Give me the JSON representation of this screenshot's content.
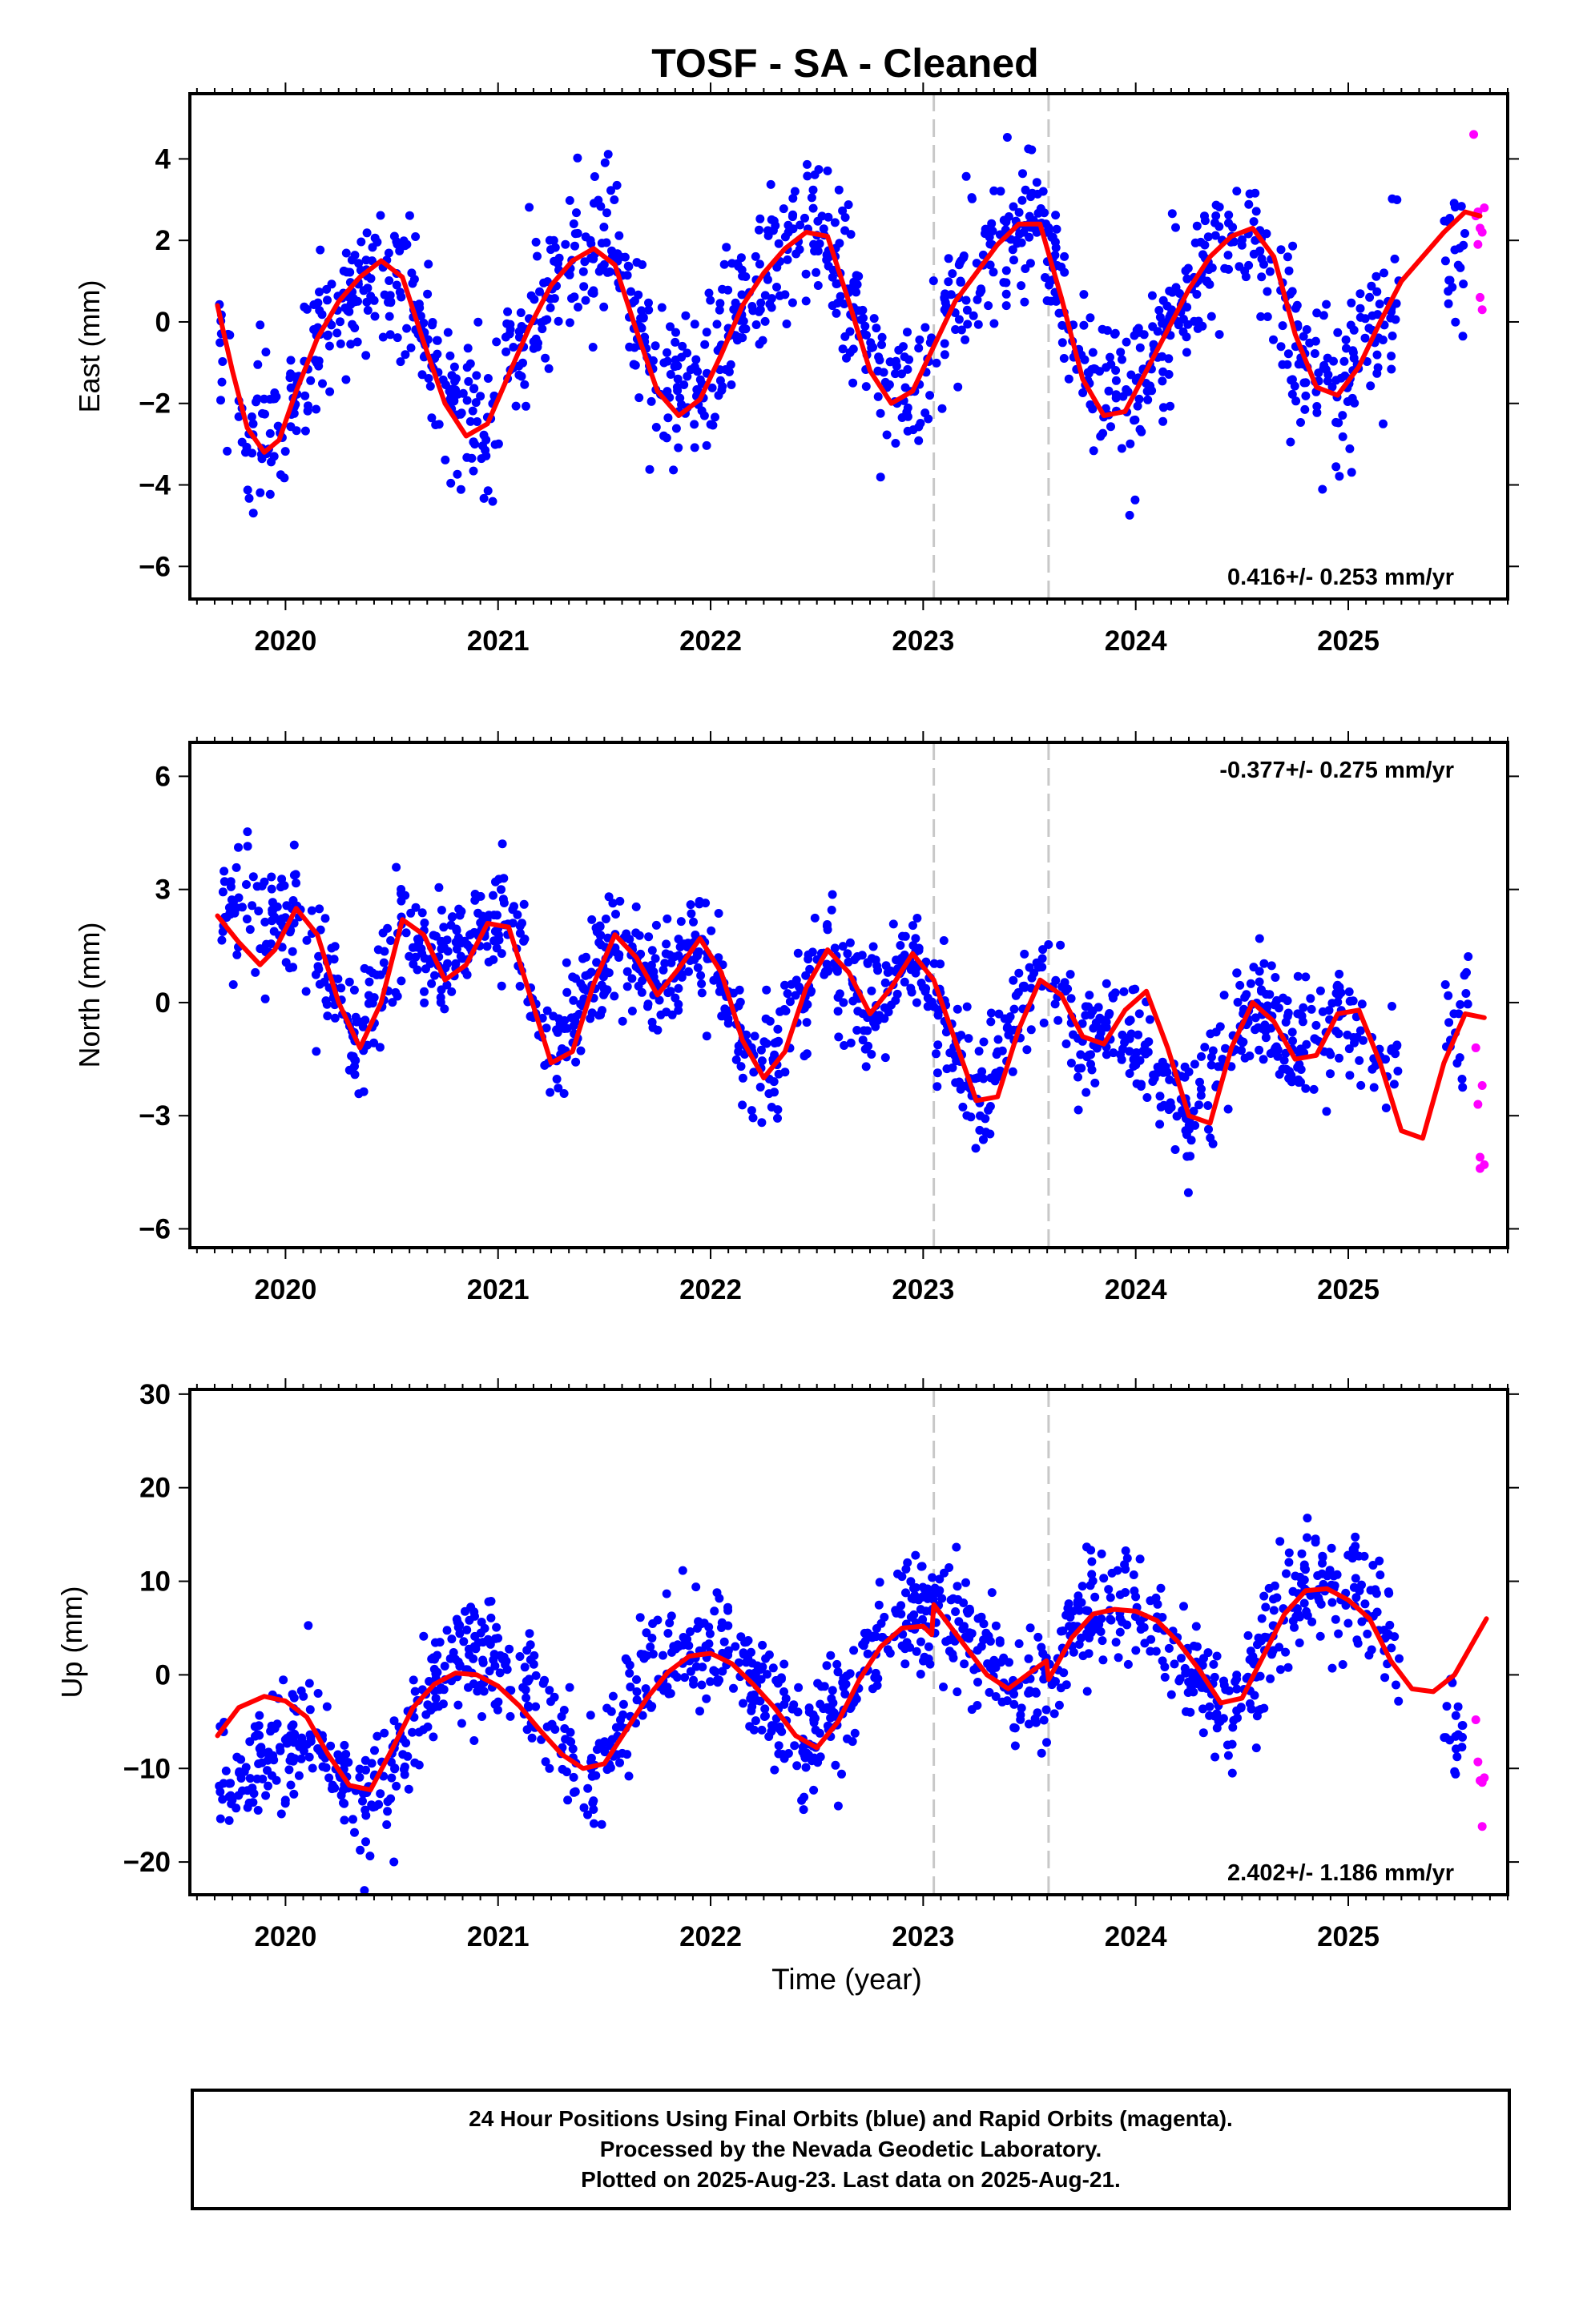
{
  "title": "TOSF  - SA - Cleaned",
  "xlabel": "Time (year)",
  "colors": {
    "final_orbits": "#0000ff",
    "rapid_orbits": "#ff00ff",
    "model_fit": "#ff0000",
    "event_lines": "#c8c8c8"
  },
  "footer": {
    "line1": "24 Hour Positions Using Final Orbits (blue) and Rapid Orbits (magenta).",
    "line2": "Processed by the Nevada Geodetic Laboratory.",
    "line3": "Plotted on 2025-Aug-23. Last data on 2025-Aug-21."
  },
  "chart_data": [
    {
      "type": "scatter",
      "component": "East",
      "ylabel": "East (mm)",
      "rate_text": "0.416+/- 0.253 mm/yr",
      "rate_position": "bottom-right",
      "xlim": [
        2019.55,
        2025.75
      ],
      "ylim": [
        -6.8,
        5.6
      ],
      "yticks": [
        -6,
        -4,
        -2,
        0,
        2,
        4
      ],
      "xticks": [
        2020,
        2021,
        2022,
        2023,
        2024,
        2025
      ],
      "event_lines_x": [
        2023.05,
        2023.59
      ],
      "fit_curve": {
        "x": [
          2019.68,
          2019.75,
          2019.82,
          2019.9,
          2019.97,
          2020.05,
          2020.15,
          2020.25,
          2020.35,
          2020.45,
          2020.55,
          2020.65,
          2020.75,
          2020.85,
          2020.95,
          2021.05,
          2021.15,
          2021.25,
          2021.35,
          2021.45,
          2021.55,
          2021.65,
          2021.75,
          2021.85,
          2021.95,
          2022.05,
          2022.15,
          2022.25,
          2022.35,
          2022.45,
          2022.55,
          2022.65,
          2022.75,
          2022.85,
          2022.95,
          2023.05,
          2023.15,
          2023.25,
          2023.35,
          2023.45,
          2023.55,
          2023.65,
          2023.75,
          2023.85,
          2023.95,
          2024.05,
          2024.15,
          2024.25,
          2024.35,
          2024.45,
          2024.55,
          2024.65,
          2024.75,
          2024.85,
          2024.95,
          2025.05,
          2025.15,
          2025.25,
          2025.35,
          2025.45,
          2025.55,
          2025.62
        ],
        "y": [
          0.4,
          -1.2,
          -2.6,
          -3.2,
          -2.9,
          -1.7,
          -0.4,
          0.5,
          1.1,
          1.5,
          1.1,
          -0.5,
          -2.0,
          -2.8,
          -2.5,
          -1.3,
          -0.1,
          0.9,
          1.5,
          1.8,
          1.4,
          -0.2,
          -1.7,
          -2.3,
          -1.9,
          -0.8,
          0.4,
          1.2,
          1.8,
          2.2,
          2.1,
          0.5,
          -1.2,
          -2.0,
          -1.7,
          -0.6,
          0.5,
          1.2,
          1.9,
          2.4,
          2.4,
          0.6,
          -1.4,
          -2.3,
          -2.2,
          -1.2,
          -0.2,
          0.8,
          1.6,
          2.1,
          2.3,
          1.6,
          -0.3,
          -1.6,
          -1.8,
          -1.1,
          0.0,
          1.0,
          1.6,
          2.2,
          2.7,
          2.6
        ]
      },
      "final_points": {
        "anchors_x": [
          2019.68,
          2019.82,
          2019.97,
          2020.15,
          2020.35,
          2020.55,
          2020.75,
          2020.95,
          2021.15,
          2021.35,
          2021.55,
          2021.75,
          2021.95,
          2022.15,
          2022.35,
          2022.55,
          2022.75,
          2022.95,
          2023.15,
          2023.35,
          2023.55,
          2023.75,
          2023.95,
          2024.15,
          2024.35,
          2024.55,
          2024.75,
          2024.95,
          2025.15,
          2025.45,
          2025.55
        ],
        "anchors_y": [
          0.2,
          -2.5,
          -2.8,
          -0.5,
          1.0,
          1.3,
          -2.0,
          -2.4,
          0.0,
          1.6,
          1.6,
          -1.5,
          -1.8,
          0.5,
          1.9,
          2.2,
          -1.0,
          -1.8,
          0.6,
          1.9,
          2.5,
          -1.2,
          -2.0,
          0.0,
          1.6,
          2.3,
          -0.5,
          -1.8,
          0.0,
          1.5,
          2.2
        ],
        "spread": 1.2,
        "count": 1300
      },
      "rapid_points": {
        "x": [
          2025.59,
          2025.6,
          2025.61,
          2025.61,
          2025.62,
          2025.62,
          2025.63,
          2025.63,
          2025.64
        ],
        "y": [
          4.6,
          2.6,
          2.7,
          1.9,
          2.3,
          0.6,
          0.3,
          2.2,
          2.8
        ]
      }
    },
    {
      "type": "scatter",
      "component": "North",
      "ylabel": "North (mm)",
      "rate_text": "-0.377+/- 0.275 mm/yr",
      "rate_position": "top-right",
      "xlim": [
        2019.55,
        2025.75
      ],
      "ylim": [
        -6.5,
        6.9
      ],
      "yticks": [
        -6,
        -3,
        0,
        3,
        6
      ],
      "xticks": [
        2020,
        2021,
        2022,
        2023,
        2024,
        2025
      ],
      "event_lines_x": [
        2023.05,
        2023.59
      ],
      "fit_curve": {
        "x": [
          2019.68,
          2019.78,
          2019.88,
          2019.95,
          2020.05,
          2020.15,
          2020.25,
          2020.35,
          2020.45,
          2020.55,
          2020.65,
          2020.75,
          2020.85,
          2020.95,
          2021.05,
          2021.15,
          2021.25,
          2021.35,
          2021.45,
          2021.55,
          2021.65,
          2021.75,
          2021.85,
          2021.95,
          2022.05,
          2022.15,
          2022.25,
          2022.35,
          2022.45,
          2022.55,
          2022.65,
          2022.75,
          2022.85,
          2022.95,
          2023.05,
          2023.15,
          2023.25,
          2023.35,
          2023.45,
          2023.55,
          2023.65,
          2023.75,
          2023.85,
          2023.95,
          2024.05,
          2024.15,
          2024.25,
          2024.35,
          2024.45,
          2024.55,
          2024.65,
          2024.75,
          2024.85,
          2024.95,
          2025.05,
          2025.15,
          2025.25,
          2025.35,
          2025.45,
          2025.55,
          2025.64
        ],
        "y": [
          2.3,
          1.6,
          1.0,
          1.4,
          2.5,
          1.8,
          0.0,
          -1.2,
          0.0,
          2.2,
          1.8,
          0.6,
          1.0,
          2.1,
          2.0,
          0.2,
          -1.6,
          -1.3,
          0.5,
          1.8,
          1.2,
          0.2,
          0.9,
          1.7,
          0.8,
          -1.0,
          -2.0,
          -1.3,
          0.4,
          1.4,
          0.8,
          -0.3,
          0.4,
          1.3,
          0.6,
          -1.0,
          -2.6,
          -2.5,
          -0.7,
          0.6,
          0.2,
          -0.9,
          -1.1,
          -0.2,
          0.3,
          -1.2,
          -3.0,
          -3.2,
          -1.2,
          0.0,
          -0.5,
          -1.5,
          -1.4,
          -0.3,
          -0.2,
          -1.6,
          -3.4,
          -3.6,
          -1.6,
          -0.3,
          -0.4
        ]
      },
      "final_points": {
        "anchors_x": [
          2019.68,
          2019.88,
          2020.05,
          2020.25,
          2020.35,
          2020.55,
          2020.75,
          2020.95,
          2021.05,
          2021.25,
          2021.55,
          2021.75,
          2021.95,
          2022.25,
          2022.55,
          2022.75,
          2022.95,
          2023.25,
          2023.55,
          2023.75,
          2023.95,
          2024.25,
          2024.55,
          2024.75,
          2024.95,
          2025.15,
          2025.52,
          2025.57
        ],
        "anchors_y": [
          2.6,
          2.3,
          2.3,
          0.3,
          -1.0,
          1.9,
          1.0,
          2.0,
          2.5,
          -1.6,
          1.8,
          0.5,
          1.5,
          -2.0,
          1.5,
          -0.5,
          1.6,
          -2.6,
          1.0,
          -1.2,
          -0.6,
          -3.0,
          0.2,
          -1.4,
          -0.2,
          -1.8,
          -0.3,
          -0.1
        ],
        "spread": 1.0,
        "count": 1300
      },
      "rapid_points": {
        "x": [
          2025.6,
          2025.61,
          2025.62,
          2025.62,
          2025.63,
          2025.64
        ],
        "y": [
          -1.2,
          -2.7,
          -4.1,
          -4.4,
          -2.2,
          -4.3
        ]
      }
    },
    {
      "type": "scatter",
      "component": "Up",
      "ylabel": "Up (mm)",
      "rate_text": "2.402+/- 1.186 mm/yr",
      "rate_position": "bottom-right",
      "xlim": [
        2019.55,
        2025.75
      ],
      "ylim": [
        -23.5,
        30.5
      ],
      "yticks": [
        -20,
        -10,
        0,
        10,
        20,
        30
      ],
      "xticks": [
        2020,
        2021,
        2022,
        2023,
        2024,
        2025
      ],
      "event_lines_x": [
        2023.05,
        2023.59
      ],
      "fit_curve": {
        "x": [
          2019.68,
          2019.78,
          2019.9,
          2020.0,
          2020.1,
          2020.2,
          2020.3,
          2020.4,
          2020.5,
          2020.6,
          2020.7,
          2020.8,
          2020.9,
          2021.0,
          2021.1,
          2021.2,
          2021.3,
          2021.4,
          2021.5,
          2021.6,
          2021.7,
          2021.8,
          2021.9,
          2022.0,
          2022.1,
          2022.2,
          2022.3,
          2022.4,
          2022.5,
          2022.6,
          2022.7,
          2022.8,
          2022.9,
          2023.0,
          2023.04,
          2023.05,
          2023.1,
          2023.2,
          2023.3,
          2023.4,
          2023.5,
          2023.58,
          2023.59,
          2023.7,
          2023.8,
          2023.9,
          2024.0,
          2024.1,
          2024.2,
          2024.3,
          2024.4,
          2024.5,
          2024.6,
          2024.7,
          2024.8,
          2024.9,
          2025.0,
          2025.1,
          2025.2,
          2025.3,
          2025.4,
          2025.5,
          2025.6,
          2025.65
        ],
        "y": [
          -6.5,
          -3.5,
          -2.3,
          -2.8,
          -4.5,
          -8.5,
          -11.8,
          -12.3,
          -8.0,
          -3.5,
          -1.0,
          0.2,
          0.0,
          -1.2,
          -3.3,
          -6.0,
          -8.5,
          -10.0,
          -9.5,
          -6.0,
          -2.5,
          0.3,
          2.0,
          2.3,
          1.2,
          -1.0,
          -3.5,
          -6.5,
          -7.8,
          -5.0,
          -0.5,
          3.0,
          5.0,
          5.2,
          4.3,
          7.5,
          6.0,
          3.0,
          0.0,
          -1.5,
          0.2,
          1.5,
          -0.5,
          4.0,
          6.5,
          7.0,
          6.8,
          5.8,
          3.5,
          0.5,
          -3.0,
          -2.5,
          2.0,
          6.5,
          9.0,
          9.2,
          8.0,
          6.0,
          1.5,
          -1.5,
          -1.8,
          0.0,
          4.0,
          6.0
        ]
      },
      "final_points": {
        "anchors_x": [
          2019.68,
          2019.9,
          2020.1,
          2020.4,
          2020.6,
          2020.8,
          2021.0,
          2021.2,
          2021.45,
          2021.7,
          2021.9,
          2022.1,
          2022.45,
          2022.7,
          2022.95,
          2023.1,
          2023.3,
          2023.45,
          2023.58,
          2023.8,
          2024.0,
          2024.2,
          2024.45,
          2024.7,
          2024.9,
          2025.15,
          2025.35,
          2025.55
        ],
        "anchors_y": [
          -12.0,
          -9.5,
          -7.5,
          -13.0,
          -5.5,
          2.0,
          1.5,
          -3.0,
          -11.0,
          1.0,
          3.0,
          2.5,
          -8.0,
          0.0,
          7.5,
          7.0,
          2.0,
          -3.0,
          -1.0,
          8.0,
          6.5,
          2.0,
          -5.0,
          7.5,
          10.0,
          7.0,
          -4.0,
          -5.0
        ],
        "spread": 4.2,
        "count": 1300
      },
      "rapid_points": {
        "x": [
          2025.6,
          2025.61,
          2025.62,
          2025.63,
          2025.63,
          2025.64
        ],
        "y": [
          -4.8,
          -9.3,
          -11.3,
          -16.2,
          -11.5,
          -11.0
        ]
      }
    }
  ]
}
